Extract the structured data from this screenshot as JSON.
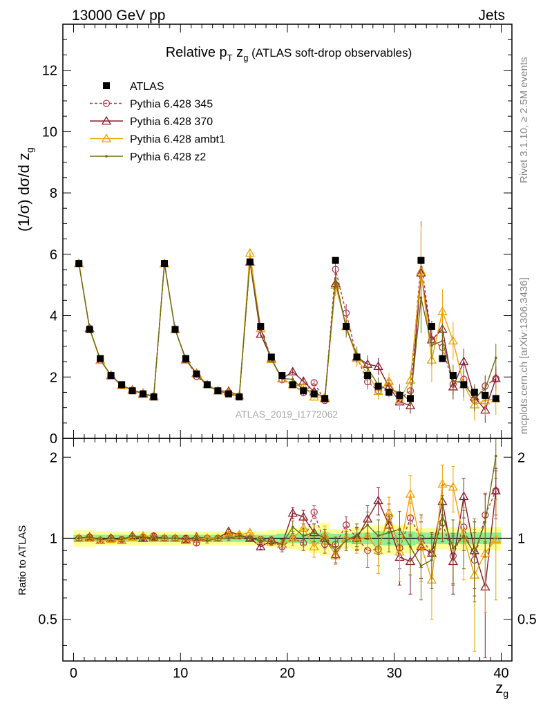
{
  "header": {
    "left": "13000 GeV pp",
    "right": "Jets"
  },
  "plot_title": {
    "prefix": "Relative p",
    "sub1": "T",
    "mid": " z",
    "sub2": "g",
    "suffix": " (ATLAS soft-drop observables)"
  },
  "side_labels": {
    "rivet": "Rivet 3.1.10, ≥ 2.5M events",
    "mcplots": "mcplots.cern.ch [arXiv:1306.3436]"
  },
  "watermark": "ATLAS_2019_I1772062",
  "colors": {
    "data": "#000000",
    "p345": "#b03a48",
    "p370": "#8b1a2b",
    "ambt1": "#f0a000",
    "z2": "#6b6b0f",
    "band_inner": "#90ee90",
    "band_outer": "#ffff99"
  },
  "chart_data": {
    "type": "line",
    "xlabel_main": "z",
    "xlabel_sub": "g",
    "ylabel": "(1/σ) dσ/d z",
    "ylabel_sub": "g",
    "ratio_ylabel": "Ratio to ATLAS",
    "xlim": [
      -1,
      41
    ],
    "ylim": [
      0,
      13.5
    ],
    "ratio_ylim": [
      0.35,
      2.35
    ],
    "x_ticks": [
      "0",
      "10",
      "20",
      "30",
      "40"
    ],
    "y_ticks": [
      "0",
      "2",
      "4",
      "6",
      "8",
      "10",
      "12"
    ],
    "ratio_ticks": [
      "0.5",
      "1",
      "2"
    ],
    "legend_placement": "top-left",
    "x": [
      0.5,
      1.5,
      2.5,
      3.5,
      4.5,
      5.5,
      6.5,
      7.5,
      8.5,
      9.5,
      10.5,
      11.5,
      12.5,
      13.5,
      14.5,
      15.5,
      16.5,
      17.5,
      18.5,
      19.5,
      20.5,
      21.5,
      22.5,
      23.5,
      24.5,
      25.5,
      26.5,
      27.5,
      28.5,
      29.5,
      30.5,
      31.5,
      32.5,
      33.5,
      34.5,
      35.5,
      36.5,
      37.5,
      38.5,
      39.5
    ],
    "data_values": [
      5.7,
      3.55,
      2.6,
      2.05,
      1.75,
      1.55,
      1.45,
      1.35,
      5.7,
      3.55,
      2.6,
      2.1,
      1.75,
      1.55,
      1.45,
      1.35,
      5.75,
      3.65,
      2.65,
      2.05,
      1.75,
      1.55,
      1.45,
      1.3,
      5.8,
      3.65,
      2.65,
      2.05,
      1.7,
      1.5,
      1.4,
      1.3,
      5.8,
      3.65,
      2.6,
      2.05,
      1.75,
      1.5,
      1.4,
      1.3
    ],
    "band_inner": [
      0.03,
      0.03,
      0.03,
      0.03,
      0.03,
      0.03,
      0.03,
      0.03,
      0.03,
      0.03,
      0.03,
      0.03,
      0.03,
      0.03,
      0.03,
      0.03,
      0.03,
      0.03,
      0.03,
      0.04,
      0.04,
      0.04,
      0.05,
      0.05,
      0.04,
      0.04,
      0.05,
      0.05,
      0.06,
      0.06,
      0.06,
      0.06,
      0.05,
      0.05,
      0.05,
      0.05,
      0.05,
      0.05,
      0.05,
      0.05
    ],
    "band_outer": [
      0.07,
      0.07,
      0.06,
      0.06,
      0.06,
      0.06,
      0.06,
      0.06,
      0.06,
      0.06,
      0.06,
      0.06,
      0.06,
      0.06,
      0.06,
      0.06,
      0.06,
      0.06,
      0.07,
      0.08,
      0.09,
      0.1,
      0.12,
      0.14,
      0.08,
      0.08,
      0.1,
      0.11,
      0.12,
      0.13,
      0.12,
      0.12,
      0.09,
      0.09,
      0.09,
      0.1,
      0.1,
      0.1,
      0.1,
      0.1
    ],
    "series": [
      {
        "name": "ATLAS",
        "marker": "square",
        "values": [
          5.7,
          3.55,
          2.6,
          2.05,
          1.75,
          1.55,
          1.45,
          1.35,
          5.7,
          3.55,
          2.6,
          2.1,
          1.75,
          1.55,
          1.45,
          1.35,
          5.75,
          3.65,
          2.65,
          2.05,
          1.75,
          1.55,
          1.45,
          1.3,
          5.8,
          3.65,
          2.65,
          2.05,
          1.7,
          1.5,
          1.4,
          1.3,
          5.8,
          3.65,
          2.6,
          2.05,
          1.75,
          1.5,
          1.4,
          1.3
        ]
      },
      {
        "name": "Pythia 6.428 345",
        "marker": "circle",
        "dashed": true,
        "ratio": [
          1.0,
          1.01,
          0.98,
          1.0,
          0.99,
          1.01,
          1.01,
          1.02,
          1.0,
          1.0,
          1.0,
          0.96,
          1.0,
          1.0,
          1.02,
          1.02,
          1.0,
          0.99,
          0.98,
          0.93,
          1.0,
          0.96,
          1.25,
          0.95,
          0.95,
          1.12,
          1.0,
          0.9,
          0.91,
          1.2,
          0.92,
          1.19,
          1.0,
          0.88,
          1.14,
          0.86,
          1.1,
          0.83,
          1.22,
          1.5
        ]
      },
      {
        "name": "Pythia 6.428 370",
        "marker": "triangle",
        "ratio": [
          1.0,
          1.01,
          0.98,
          1.0,
          0.98,
          1.02,
          1.0,
          1.01,
          1.0,
          1.0,
          0.99,
          1.01,
          1.0,
          1.0,
          1.06,
          1.03,
          1.0,
          0.93,
          0.98,
          0.95,
          1.24,
          1.2,
          1.05,
          1.0,
          0.87,
          1.0,
          1.0,
          1.18,
          1.38,
          1.12,
          0.85,
          0.82,
          0.93,
          0.88,
          1.37,
          0.82,
          1.43,
          0.9,
          0.66,
          1.5
        ]
      },
      {
        "name": "Pythia 6.428 ambt1",
        "marker": "triangle",
        "ratio": [
          1.0,
          1.0,
          0.98,
          0.99,
          0.98,
          1.01,
          1.02,
          1.0,
          1.0,
          1.0,
          0.98,
          1.0,
          1.0,
          1.0,
          1.03,
          1.03,
          1.05,
          0.98,
          0.97,
          0.95,
          1.0,
          1.09,
          0.93,
          1.03,
          0.86,
          1.0,
          0.98,
          1.02,
          0.9,
          1.24,
          0.89,
          1.46,
          0.94,
          0.7,
          1.59,
          1.55,
          1.0,
          0.73,
          0.88,
          0.99
        ]
      },
      {
        "name": "Pythia 6.428 z2",
        "marker": "dot",
        "ratio": [
          1.0,
          1.01,
          0.99,
          1.0,
          0.99,
          1.02,
          1.01,
          1.0,
          1.0,
          1.0,
          0.99,
          1.0,
          0.98,
          1.0,
          1.0,
          1.02,
          1.0,
          0.98,
          0.97,
          0.95,
          1.1,
          1.02,
          1.05,
          1.0,
          0.9,
          0.98,
          1.03,
          1.12,
          1.02,
          1.05,
          1.08,
          0.93,
          0.79,
          0.83,
          1.22,
          0.92,
          1.02,
          0.88,
          1.15,
          2.02
        ]
      }
    ],
    "ratio_errors": {
      "p345": [
        0.02,
        0.02,
        0.02,
        0.02,
        0.02,
        0.02,
        0.02,
        0.02,
        0.02,
        0.02,
        0.02,
        0.02,
        0.02,
        0.02,
        0.02,
        0.02,
        0.02,
        0.02,
        0.03,
        0.04,
        0.06,
        0.06,
        0.07,
        0.07,
        0.06,
        0.08,
        0.09,
        0.12,
        0.12,
        0.14,
        0.15,
        0.16,
        0.22,
        0.15,
        0.17,
        0.18,
        0.2,
        0.22,
        0.25,
        0.28
      ],
      "p370": [
        0.02,
        0.02,
        0.02,
        0.02,
        0.02,
        0.02,
        0.02,
        0.02,
        0.02,
        0.02,
        0.02,
        0.02,
        0.02,
        0.02,
        0.02,
        0.02,
        0.02,
        0.02,
        0.03,
        0.04,
        0.06,
        0.07,
        0.08,
        0.08,
        0.06,
        0.08,
        0.1,
        0.14,
        0.16,
        0.16,
        0.18,
        0.2,
        0.22,
        0.17,
        0.2,
        0.2,
        0.24,
        0.25,
        0.3,
        0.32
      ],
      "ambt1": [
        0.02,
        0.02,
        0.02,
        0.02,
        0.02,
        0.02,
        0.02,
        0.02,
        0.02,
        0.02,
        0.02,
        0.02,
        0.02,
        0.02,
        0.02,
        0.02,
        0.02,
        0.02,
        0.03,
        0.04,
        0.06,
        0.07,
        0.08,
        0.08,
        0.06,
        0.08,
        0.1,
        0.14,
        0.16,
        0.18,
        0.2,
        0.25,
        0.25,
        0.2,
        0.28,
        0.3,
        0.3,
        0.35,
        0.35,
        0.4
      ],
      "z2": [
        0.02,
        0.02,
        0.02,
        0.02,
        0.02,
        0.02,
        0.02,
        0.02,
        0.02,
        0.02,
        0.02,
        0.02,
        0.02,
        0.02,
        0.02,
        0.02,
        0.02,
        0.02,
        0.03,
        0.04,
        0.06,
        0.07,
        0.08,
        0.08,
        0.06,
        0.08,
        0.1,
        0.13,
        0.15,
        0.16,
        0.18,
        0.2,
        0.2,
        0.18,
        0.22,
        0.25,
        0.25,
        0.3,
        0.3,
        0.35
      ]
    }
  }
}
